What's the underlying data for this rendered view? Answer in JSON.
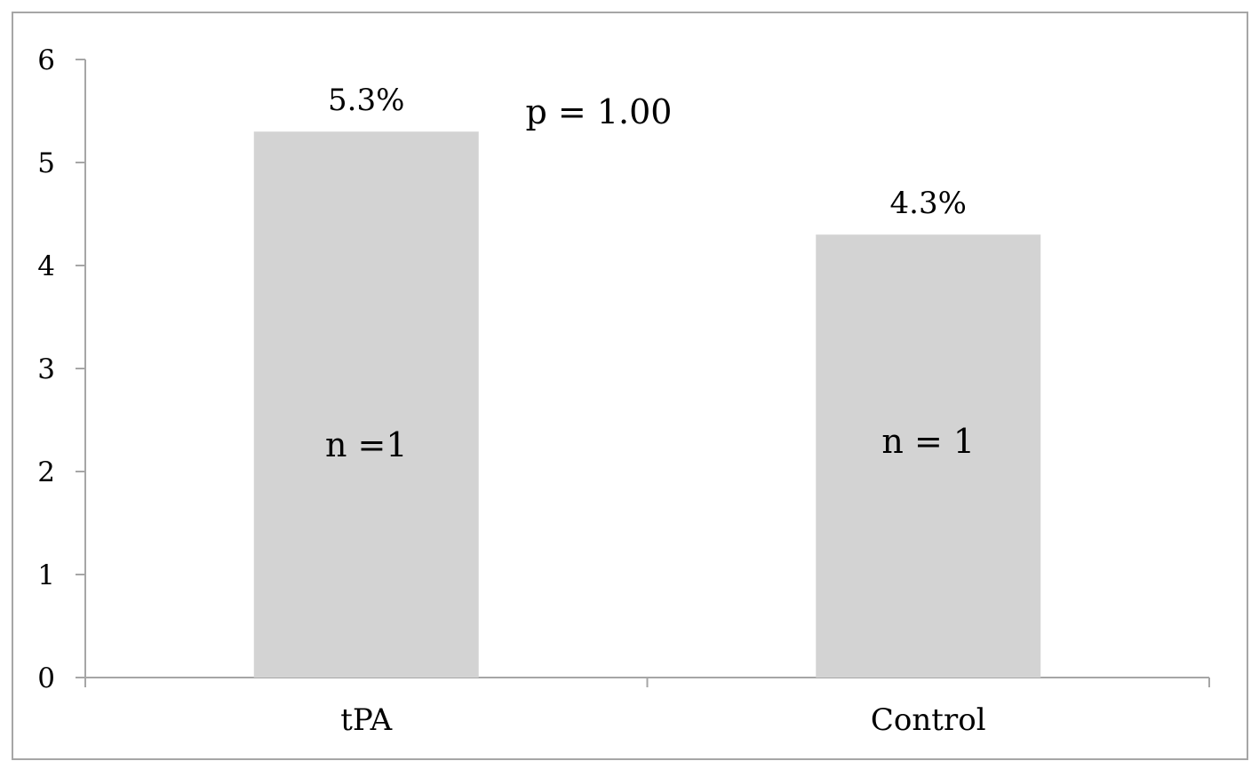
{
  "chart_data": {
    "type": "bar",
    "categories": [
      "tPA",
      "Control"
    ],
    "values": [
      5.3,
      4.3
    ],
    "value_labels": [
      "5.3%",
      "4.3%"
    ],
    "bar_annotations": [
      "n =1",
      "n = 1"
    ],
    "annotation": "p = 1.00",
    "title": "",
    "xlabel": "",
    "ylabel": "",
    "ylim": [
      0,
      6
    ],
    "yticks": [
      0,
      1,
      2,
      3,
      4,
      5,
      6
    ],
    "grid": false,
    "legend": "none",
    "bar_color": "#d3d3d3",
    "axis_color": "#a6a6a6"
  }
}
